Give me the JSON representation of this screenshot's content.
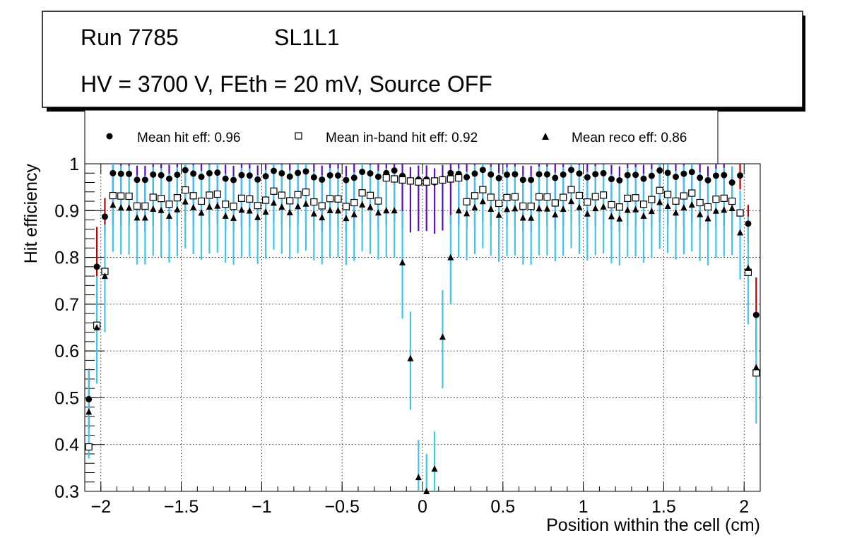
{
  "title_box": {
    "line1_run": "Run 7785",
    "line1_layer": "SL1L1",
    "line2": "HV = 3700 V, FEth = 20 mV, Source OFF"
  },
  "legend": {
    "hit": "Mean hit  eff: 0.96",
    "inband": "Mean in-band hit eff: 0.92",
    "reco": "Mean reco eff: 0.86"
  },
  "colors": {
    "hit_err_low": "#5b0fbf",
    "hit_err_edge": "#c00000",
    "inband_err": "#3ec6ee",
    "reco_err": "#3ec6ee",
    "marker": "#000000"
  },
  "chart_data": {
    "type": "scatter",
    "xlabel": "Position within the cell (cm)",
    "ylabel": "Hit efficiency",
    "xlim": [
      -2.1,
      2.1
    ],
    "ylim": [
      0.3,
      1.0
    ],
    "grid": true,
    "xticks": [
      -2,
      -1.5,
      -1,
      -0.5,
      0,
      0.5,
      1,
      1.5,
      2
    ],
    "xtick_labels": [
      "−2",
      "−1.5",
      "−1",
      "−0.5",
      "0",
      "0.5",
      "1",
      "1.5",
      "2"
    ],
    "yticks": [
      0.3,
      0.4,
      0.5,
      0.6,
      0.7,
      0.8,
      0.9,
      1.0
    ],
    "ytick_labels": [
      "0.3",
      "0.4",
      "0.5",
      "0.6",
      "0.7",
      "0.8",
      "0.9",
      "1"
    ],
    "series": [
      {
        "name": "Mean hit eff",
        "marker": "circle",
        "x": [
          -2.075,
          -2.025,
          -1.975,
          -1.925,
          1.925,
          1.975,
          2.025,
          2.075
        ],
        "y": [
          0.497,
          0.78,
          0.887,
          0.98,
          0.96,
          0.975,
          0.872,
          0.677
        ],
        "err": [
          0.065,
          0.085,
          0.04,
          0.02,
          0.03,
          0.03,
          0.04,
          0.08
        ],
        "plateau": 0.975
      },
      {
        "name": "Mean in-band hit eff",
        "marker": "open-square",
        "x": [
          -2.075,
          -2.025,
          -1.975,
          -1.925,
          1.925,
          1.975,
          2.025,
          2.075
        ],
        "y": [
          0.395,
          0.655,
          0.77,
          0.932,
          0.92,
          0.895,
          0.768,
          0.553
        ],
        "plateau": 0.925
      },
      {
        "name": "Mean reco eff",
        "marker": "triangle",
        "x": [
          -2.075,
          -2.025,
          -1.975,
          -1.925,
          -0.125,
          -0.075,
          -0.025,
          0.025,
          0.075,
          0.125,
          0.175,
          1.925,
          1.975,
          2.025,
          2.075
        ],
        "y": [
          0.47,
          0.65,
          0.76,
          0.912,
          0.789,
          0.584,
          0.33,
          0.3,
          0.348,
          0.63,
          0.8,
          0.905,
          0.853,
          0.777,
          0.565
        ],
        "err": [
          0.06,
          0.08,
          0.08,
          0.06,
          0.08,
          0.07,
          0.05,
          0.05,
          0.05,
          0.07,
          0.06,
          0.06,
          0.06,
          0.08,
          0.08
        ],
        "plateau": 0.9
      }
    ]
  }
}
